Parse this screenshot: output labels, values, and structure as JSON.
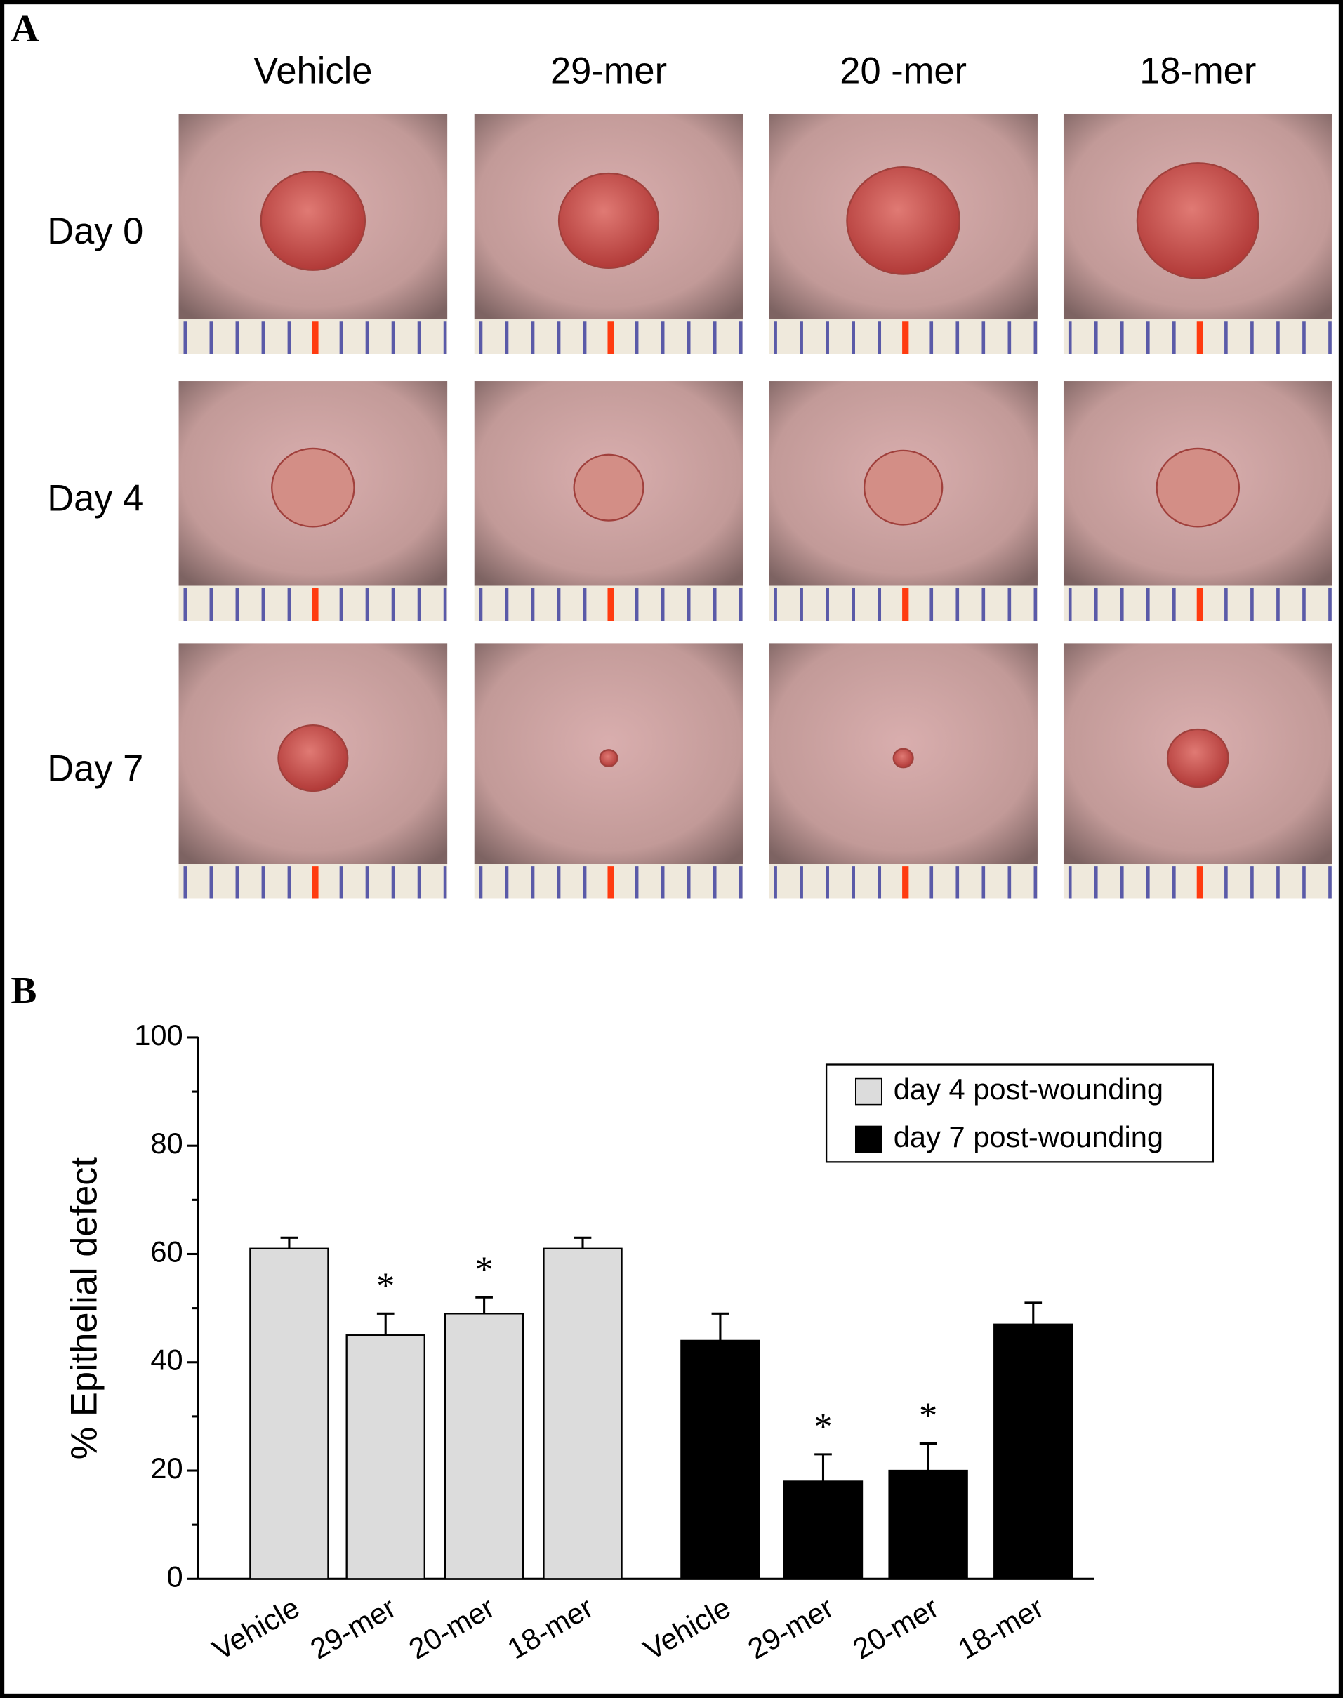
{
  "panel_a": {
    "label": "A",
    "columns": [
      "Vehicle",
      "29-mer",
      "20 -mer",
      "18-mer"
    ],
    "rows": [
      "Day 0",
      "Day 4",
      "Day 7"
    ]
  },
  "chart_data": {
    "type": "bar",
    "panel_label": "B",
    "ylabel": "% Epithelial defect",
    "categories": [
      "Vehicle",
      "29-mer",
      "20-mer",
      "18-mer"
    ],
    "series": [
      {
        "name": "day 4 post-wounding",
        "color": "#dcdcdc",
        "values": [
          61,
          45,
          49,
          61
        ],
        "errors": [
          2,
          4,
          3,
          2
        ],
        "annotations": [
          null,
          "*",
          "*",
          null
        ]
      },
      {
        "name": "day 7 post-wounding",
        "color": "#000000",
        "values": [
          44,
          18,
          20,
          47
        ],
        "errors": [
          5,
          5,
          5,
          4
        ],
        "annotations": [
          null,
          "*",
          "*",
          null
        ]
      }
    ],
    "ylim": [
      0,
      100
    ],
    "yticks": [
      0,
      20,
      40,
      60,
      80,
      100
    ],
    "yminorticks": [
      10,
      30,
      50,
      70,
      90
    ],
    "legend": "upper right"
  }
}
